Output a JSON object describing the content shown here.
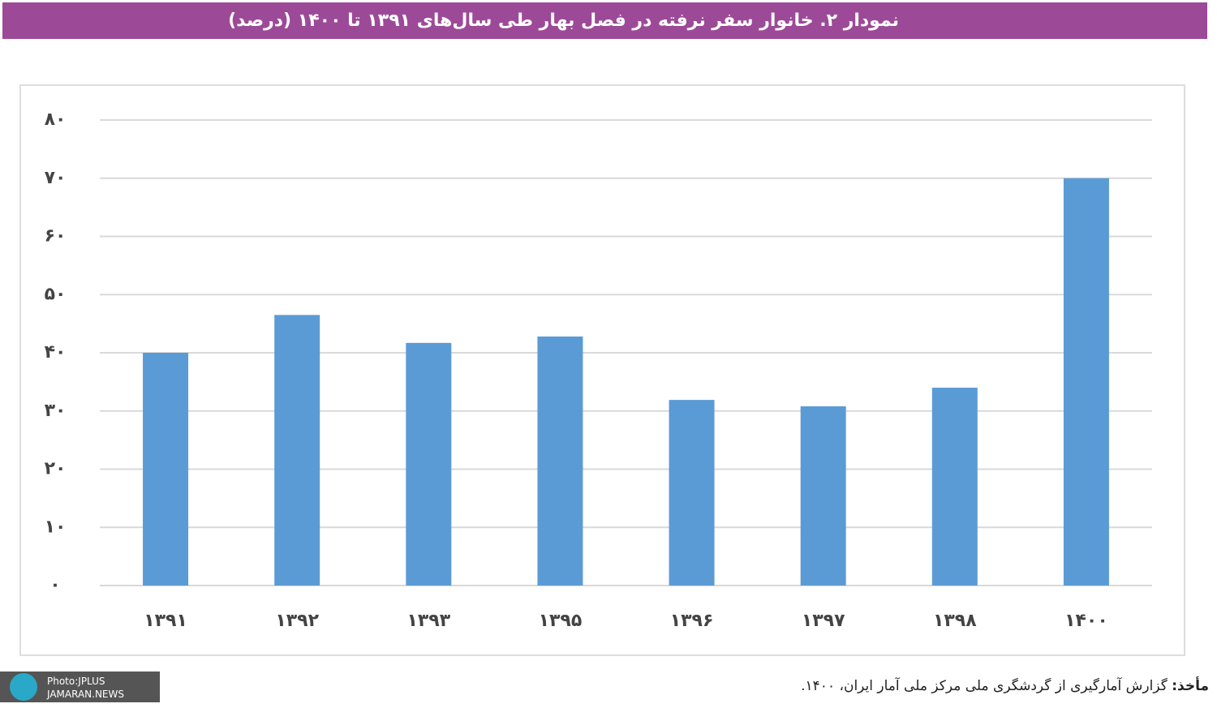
{
  "chart_data": {
    "type": "bar",
    "title": "نمودار ۲. خانوار سفر نرفته در فصل بهار طی سال‌های ۱۳۹۱ تا ۱۴۰۰ (درصد)",
    "categories": [
      "۱۳۹۱",
      "۱۳۹۲",
      "۱۳۹۳",
      "۱۳۹۵",
      "۱۳۹۶",
      "۱۳۹۷",
      "۱۳۹۸",
      "۱۴۰۰"
    ],
    "values": [
      40,
      46.5,
      41.7,
      42.8,
      31.9,
      30.8,
      34,
      70
    ],
    "color": "#5b9bd5",
    "ylim": [
      0,
      80
    ],
    "yticks": [
      {
        "value": 0,
        "label": "۰"
      },
      {
        "value": 10,
        "label": "۱۰"
      },
      {
        "value": 20,
        "label": "۲۰"
      },
      {
        "value": 30,
        "label": "۳۰"
      },
      {
        "value": 40,
        "label": "۴۰"
      },
      {
        "value": 50,
        "label": "۵۰"
      },
      {
        "value": 60,
        "label": "۶۰"
      },
      {
        "value": 70,
        "label": "۷۰"
      },
      {
        "value": 80,
        "label": "۸۰"
      }
    ],
    "grid": true,
    "source_label": "مأخذ:",
    "source": "گزارش آمارگیری از گردشگری ملی مرکز ملی آمار ایران، ۱۴۰۰."
  },
  "watermark": {
    "line1": "Photo:JPLUS",
    "line2": "JAMARAN.NEWS"
  }
}
